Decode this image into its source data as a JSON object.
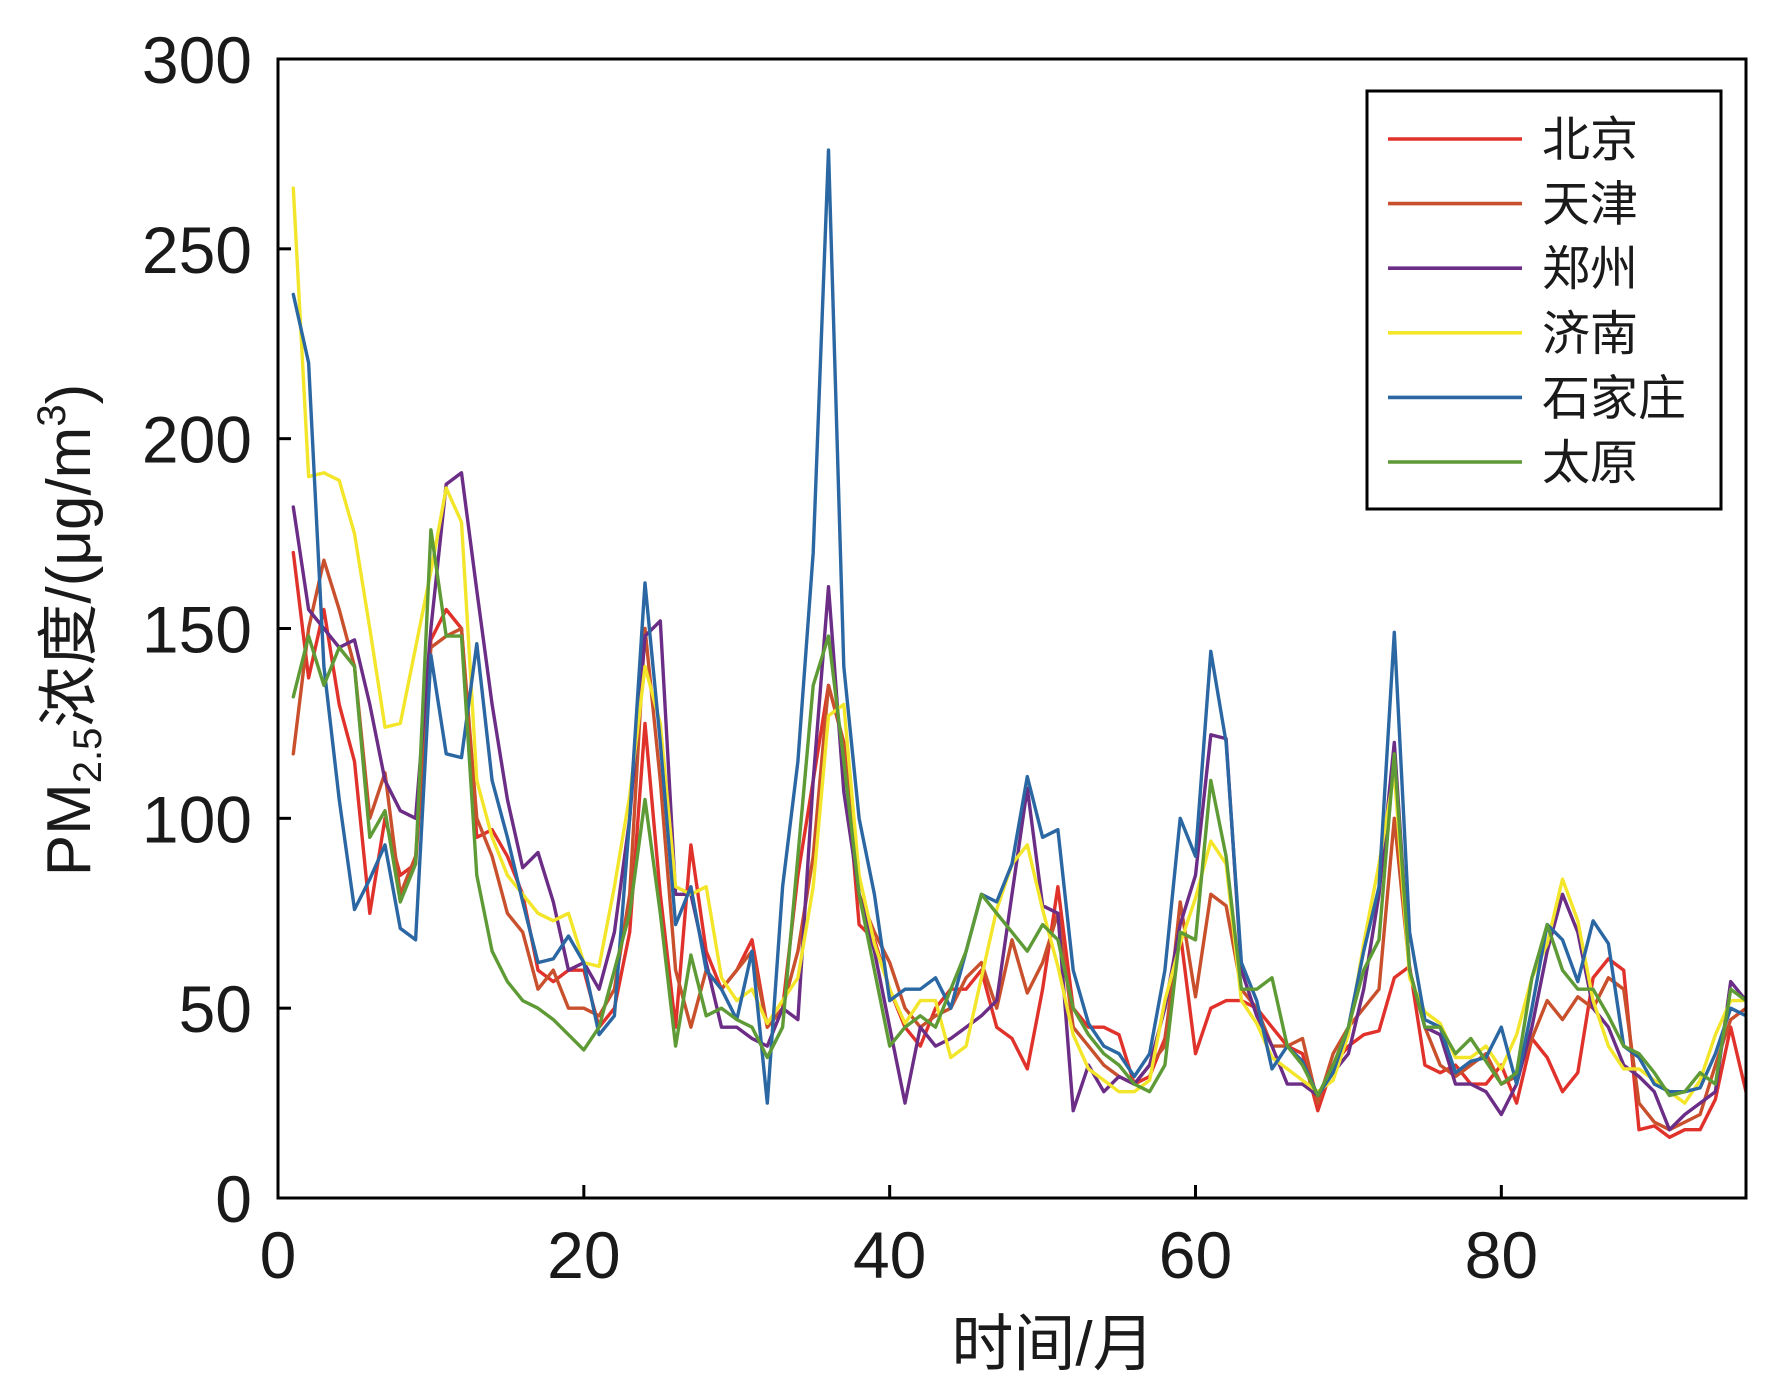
{
  "chart_data": {
    "type": "line",
    "xlabel": "时间/月",
    "ylabel": [
      "PM",
      "2.5",
      "浓度/(μg/m",
      "3",
      ")"
    ],
    "xlim": [
      0,
      96
    ],
    "ylim": [
      0,
      300
    ],
    "xticks": [
      0,
      20,
      40,
      60,
      80
    ],
    "yticks": [
      0,
      50,
      100,
      150,
      200,
      250,
      300
    ],
    "grid": false,
    "legend": "top-right",
    "x": [
      1,
      2,
      3,
      4,
      5,
      6,
      7,
      8,
      9,
      10,
      11,
      12,
      13,
      14,
      15,
      16,
      17,
      18,
      19,
      20,
      21,
      22,
      23,
      24,
      25,
      26,
      27,
      28,
      29,
      30,
      31,
      32,
      33,
      34,
      35,
      36,
      37,
      38,
      39,
      40,
      41,
      42,
      43,
      44,
      45,
      46,
      47,
      48,
      49,
      50,
      51,
      52,
      53,
      54,
      55,
      56,
      57,
      58,
      59,
      60,
      61,
      62,
      63,
      64,
      65,
      66,
      67,
      68,
      69,
      70,
      71,
      72,
      73,
      74,
      75,
      76,
      77,
      78,
      79,
      80,
      81,
      82,
      83,
      84,
      85,
      86,
      87,
      88,
      89,
      90,
      91,
      92,
      93,
      94,
      95,
      96
    ],
    "series": [
      {
        "name": "北京",
        "color": "#e0322b",
        "values": [
          170,
          137,
          155,
          130,
          115,
          75,
          100,
          85,
          88,
          147,
          155,
          150,
          95,
          97,
          90,
          80,
          60,
          57,
          60,
          60,
          45,
          50,
          70,
          125,
          80,
          45,
          93,
          65,
          55,
          60,
          68,
          45,
          50,
          85,
          110,
          135,
          120,
          72,
          68,
          55,
          45,
          40,
          50,
          55,
          55,
          60,
          45,
          42,
          34,
          55,
          82,
          50,
          45,
          45,
          43,
          30,
          32,
          42,
          70,
          38,
          50,
          52,
          52,
          50,
          45,
          40,
          38,
          23,
          35,
          40,
          43,
          44,
          58,
          61,
          35,
          33,
          35,
          30,
          30,
          35,
          25,
          42,
          37,
          28,
          33,
          58,
          63,
          60,
          18,
          19,
          16,
          18,
          18,
          26,
          45,
          28
        ]
      },
      {
        "name": "天津",
        "color": "#c9502c",
        "values": [
          117,
          150,
          168,
          155,
          140,
          100,
          112,
          80,
          90,
          145,
          148,
          150,
          100,
          90,
          75,
          70,
          55,
          60,
          50,
          50,
          48,
          55,
          80,
          150,
          110,
          60,
          45,
          60,
          55,
          60,
          65,
          45,
          50,
          65,
          90,
          135,
          120,
          80,
          70,
          62,
          50,
          45,
          48,
          50,
          58,
          62,
          50,
          68,
          54,
          62,
          75,
          45,
          40,
          35,
          32,
          30,
          35,
          40,
          78,
          53,
          80,
          77,
          55,
          50,
          40,
          40,
          42,
          25,
          38,
          45,
          50,
          55,
          100,
          60,
          45,
          35,
          32,
          35,
          38,
          30,
          32,
          42,
          52,
          47,
          53,
          50,
          58,
          55,
          25,
          20,
          18,
          20,
          22,
          35,
          47,
          50
        ]
      },
      {
        "name": "郑州",
        "color": "#6b2d86",
        "values": [
          182,
          155,
          150,
          145,
          147,
          130,
          110,
          102,
          100,
          150,
          188,
          191,
          160,
          130,
          105,
          87,
          91,
          78,
          60,
          62,
          55,
          70,
          100,
          148,
          152,
          80,
          80,
          62,
          45,
          45,
          42,
          40,
          50,
          47,
          110,
          161,
          107,
          80,
          65,
          45,
          25,
          45,
          40,
          42,
          45,
          48,
          52,
          80,
          108,
          77,
          75,
          23,
          35,
          28,
          32,
          30,
          35,
          50,
          72,
          85,
          122,
          121,
          60,
          48,
          40,
          30,
          30,
          27,
          33,
          38,
          55,
          80,
          120,
          60,
          45,
          43,
          30,
          30,
          28,
          22,
          30,
          45,
          65,
          80,
          70,
          50,
          45,
          35,
          32,
          28,
          18,
          22,
          25,
          28,
          57,
          52
        ]
      },
      {
        "name": "济南",
        "color": "#f3e62a",
        "values": [
          266,
          190,
          191,
          189,
          175,
          150,
          124,
          125,
          145,
          165,
          187,
          178,
          110,
          95,
          85,
          80,
          75,
          73,
          75,
          62,
          61,
          82,
          106,
          140,
          125,
          82,
          80,
          82,
          58,
          52,
          55,
          46,
          52,
          58,
          82,
          127,
          130,
          85,
          67,
          55,
          46,
          52,
          52,
          37,
          40,
          58,
          76,
          88,
          93,
          76,
          61,
          43,
          34,
          31,
          28,
          28,
          31,
          52,
          67,
          79,
          94,
          88,
          52,
          46,
          37,
          34,
          31,
          28,
          31,
          43,
          67,
          88,
          112,
          58,
          49,
          46,
          37,
          37,
          40,
          34,
          43,
          58,
          67,
          84,
          73,
          52,
          40,
          34,
          34,
          31,
          28,
          25,
          31,
          43,
          52,
          52
        ]
      },
      {
        "name": "石家庄",
        "color": "#2a67a3",
        "values": [
          238,
          220,
          140,
          105,
          76,
          84,
          93,
          71,
          68,
          143,
          117,
          116,
          146,
          110,
          95,
          78,
          62,
          63,
          69,
          62,
          43,
          48,
          100,
          162,
          120,
          72,
          82,
          60,
          55,
          47,
          65,
          25,
          82,
          115,
          170,
          276,
          140,
          100,
          80,
          52,
          55,
          55,
          58,
          50,
          65,
          80,
          78,
          88,
          111,
          95,
          97,
          60,
          46,
          40,
          38,
          32,
          38,
          60,
          100,
          90,
          144,
          120,
          62,
          52,
          34,
          40,
          36,
          27,
          33,
          45,
          65,
          82,
          149,
          70,
          47,
          45,
          33,
          36,
          37,
          45,
          30,
          50,
          72,
          68,
          57,
          73,
          67,
          40,
          37,
          30,
          28,
          28,
          29,
          38,
          50,
          48
        ]
      },
      {
        "name": "太原",
        "color": "#5e9a35",
        "values": [
          132,
          148,
          135,
          145,
          140,
          95,
          102,
          78,
          88,
          176,
          148,
          148,
          85,
          65,
          57,
          52,
          50,
          47,
          43,
          39,
          45,
          60,
          75,
          105,
          75,
          40,
          64,
          48,
          50,
          47,
          45,
          37,
          45,
          90,
          135,
          148,
          115,
          80,
          60,
          40,
          45,
          48,
          45,
          55,
          65,
          80,
          75,
          70,
          65,
          72,
          68,
          50,
          43,
          38,
          35,
          30,
          28,
          35,
          70,
          68,
          110,
          90,
          55,
          55,
          58,
          40,
          35,
          27,
          35,
          45,
          60,
          68,
          117,
          60,
          45,
          45,
          38,
          42,
          36,
          30,
          33,
          58,
          72,
          60,
          55,
          55,
          48,
          40,
          38,
          33,
          27,
          28,
          33,
          30,
          55,
          52
        ]
      }
    ]
  }
}
